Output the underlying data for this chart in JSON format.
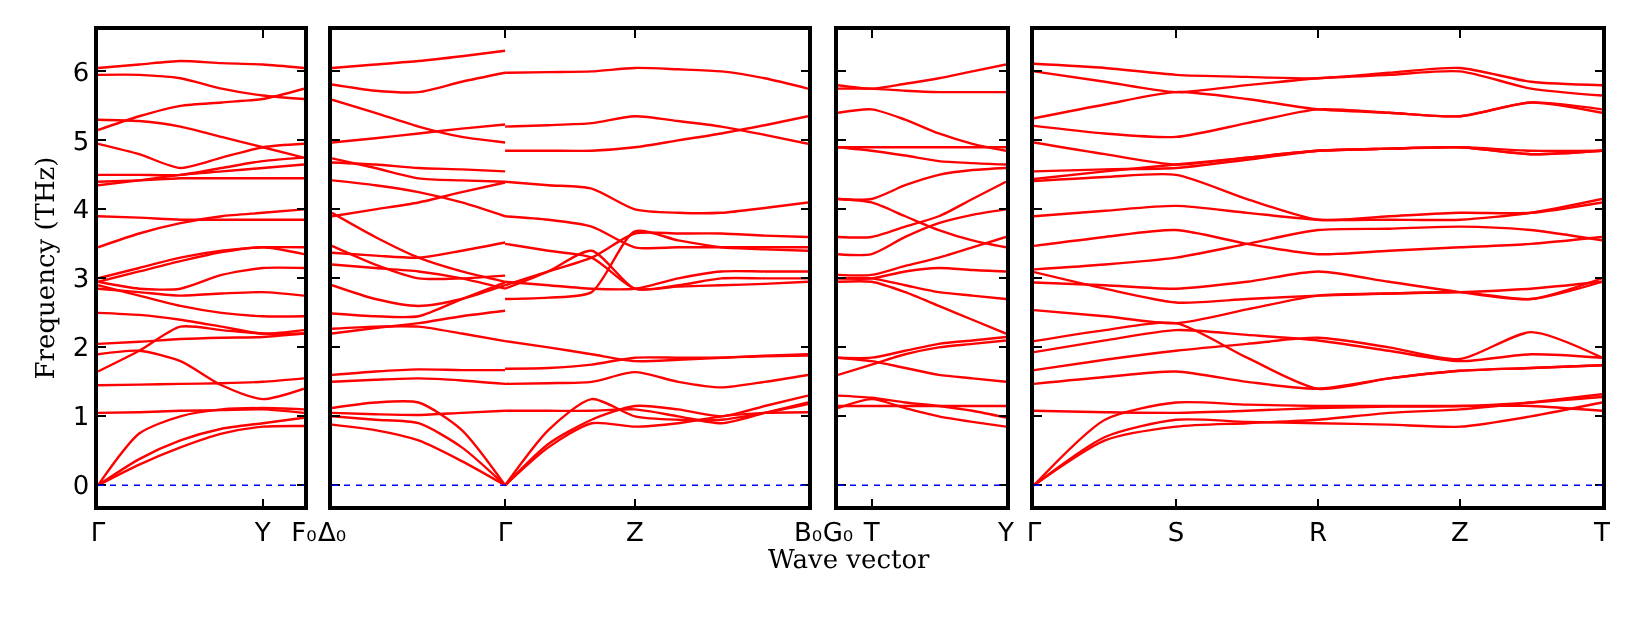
{
  "chart_data": [
    {
      "type": "line",
      "ylabel": "Frequency (THz)",
      "ylim": [
        -0.3,
        6.6
      ],
      "yticks": [
        0,
        1,
        2,
        3,
        4,
        5,
        6
      ],
      "categories": [
        "Γ",
        null,
        null,
        null,
        "Y",
        "F₀"
      ],
      "marker": "none",
      "line_style": "solid",
      "ref_lines": [
        {
          "axis": "y",
          "value": 0,
          "color": "#0000ff",
          "line_style": "dotted"
        }
      ],
      "series": [
        {
          "color": "#ff0000",
          "values": [
            0,
            0.3,
            0.55,
            0.75,
            0.85,
            0.86
          ]
        },
        {
          "color": "#ff0000",
          "values": [
            0,
            0.38,
            0.65,
            0.82,
            0.9,
            0.98
          ]
        },
        {
          "color": "#ff0000",
          "values": [
            0,
            0.75,
            1.0,
            1.1,
            1.12,
            1.1
          ]
        },
        {
          "color": "#ff0000",
          "values": [
            1.05,
            1.06,
            1.08,
            1.09,
            1.1,
            1.05
          ]
        },
        {
          "color": "#ff0000",
          "values": [
            1.45,
            1.46,
            1.47,
            1.48,
            1.5,
            1.55
          ]
        },
        {
          "color": "#ff0000",
          "values": [
            1.65,
            1.95,
            2.3,
            2.25,
            2.2,
            2.2
          ]
        },
        {
          "color": "#ff0000",
          "values": [
            1.9,
            1.95,
            1.8,
            1.45,
            1.25,
            1.4
          ]
        },
        {
          "color": "#ff0000",
          "values": [
            2.05,
            2.08,
            2.12,
            2.14,
            2.15,
            2.2
          ]
        },
        {
          "color": "#ff0000",
          "values": [
            2.5,
            2.47,
            2.4,
            2.3,
            2.2,
            2.25
          ]
        },
        {
          "color": "#ff0000",
          "values": [
            2.9,
            2.75,
            2.6,
            2.5,
            2.45,
            2.45
          ]
        },
        {
          "color": "#ff0000",
          "values": [
            2.85,
            2.8,
            2.75,
            2.78,
            2.8,
            2.75
          ]
        },
        {
          "color": "#ff0000",
          "values": [
            2.95,
            2.85,
            2.85,
            3.05,
            3.15,
            3.15
          ]
        },
        {
          "color": "#ff0000",
          "values": [
            2.95,
            3.1,
            3.25,
            3.38,
            3.45,
            3.35
          ]
        },
        {
          "color": "#ff0000",
          "values": [
            3.0,
            3.15,
            3.3,
            3.4,
            3.45,
            3.45
          ]
        },
        {
          "color": "#ff0000",
          "values": [
            3.45,
            3.65,
            3.8,
            3.9,
            3.95,
            4.0
          ]
        },
        {
          "color": "#ff0000",
          "values": [
            3.9,
            3.88,
            3.85,
            3.85,
            3.85,
            3.85
          ]
        },
        {
          "color": "#ff0000",
          "values": [
            4.35,
            4.42,
            4.5,
            4.55,
            4.6,
            4.65
          ]
        },
        {
          "color": "#ff0000",
          "values": [
            4.4,
            4.42,
            4.45,
            4.45,
            4.45,
            4.45
          ]
        },
        {
          "color": "#ff0000",
          "values": [
            4.5,
            4.5,
            4.5,
            4.6,
            4.7,
            4.75
          ]
        },
        {
          "color": "#ff0000",
          "values": [
            4.95,
            4.8,
            4.6,
            4.75,
            4.9,
            4.95
          ]
        },
        {
          "color": "#ff0000",
          "values": [
            5.15,
            5.35,
            5.5,
            5.55,
            5.6,
            5.75
          ]
        },
        {
          "color": "#ff0000",
          "values": [
            5.3,
            5.28,
            5.2,
            5.05,
            4.9,
            4.75
          ]
        },
        {
          "color": "#ff0000",
          "values": [
            5.95,
            5.95,
            5.9,
            5.75,
            5.65,
            5.6
          ]
        },
        {
          "color": "#ff0000",
          "values": [
            6.05,
            6.1,
            6.15,
            6.12,
            6.1,
            6.05
          ]
        }
      ]
    },
    {
      "type": "line",
      "ylim": [
        -0.3,
        6.6
      ],
      "yticks": [
        0,
        1,
        2,
        3,
        4,
        5,
        6
      ],
      "tick_labels": "x",
      "categories": [
        "Δ₀",
        null,
        null,
        null,
        "Γ",
        null,
        null,
        "Z",
        null,
        null,
        null,
        "B₀"
      ],
      "marker": "none",
      "line_style": "solid",
      "ref_lines": [
        {
          "axis": "y",
          "value": 0,
          "color": "#0000ff",
          "line_style": "dotted"
        }
      ],
      "series": [
        {
          "color": "#ff0000",
          "values": [
            1.12,
            1.2,
            1.2,
            0.8,
            0,
            null,
            null,
            null,
            null,
            null,
            null,
            null
          ]
        },
        {
          "color": "#ff0000",
          "values": [
            1.0,
            0.95,
            0.9,
            0.55,
            0,
            null,
            null,
            null,
            null,
            null,
            null,
            null
          ]
        },
        {
          "color": "#ff0000",
          "values": [
            0.88,
            0.8,
            0.65,
            0.35,
            0,
            null,
            null,
            null,
            null,
            null,
            null,
            null
          ]
        },
        {
          "color": "#ff0000",
          "values": [
            1.05,
            1.03,
            1.02,
            1.05,
            1.08,
            null,
            null,
            null,
            null,
            null,
            null,
            null
          ]
        },
        {
          "color": "#ff0000",
          "values": [
            1.5,
            1.53,
            1.55,
            1.52,
            1.47,
            null,
            null,
            null,
            null,
            null,
            null,
            null
          ]
        },
        {
          "color": "#ff0000",
          "values": [
            1.6,
            1.65,
            1.68,
            1.67,
            1.67,
            null,
            null,
            null,
            null,
            null,
            null,
            null
          ]
        },
        {
          "color": "#ff0000",
          "values": [
            2.27,
            2.3,
            2.3,
            2.2,
            2.09,
            null,
            null,
            null,
            null,
            null,
            null,
            null
          ]
        },
        {
          "color": "#ff0000",
          "values": [
            2.2,
            2.28,
            2.35,
            2.45,
            2.53,
            null,
            null,
            null,
            null,
            null,
            null,
            null
          ]
        },
        {
          "color": "#ff0000",
          "values": [
            2.49,
            2.45,
            2.45,
            2.7,
            2.94,
            null,
            null,
            null,
            null,
            null,
            null,
            null
          ]
        },
        {
          "color": "#ff0000",
          "values": [
            2.9,
            2.7,
            2.6,
            2.7,
            2.9,
            null,
            null,
            null,
            null,
            null,
            null,
            null
          ]
        },
        {
          "color": "#ff0000",
          "values": [
            3.2,
            3.15,
            3.1,
            3.0,
            2.85,
            null,
            null,
            null,
            null,
            null,
            null,
            null
          ]
        },
        {
          "color": "#ff0000",
          "values": [
            3.37,
            3.33,
            3.3,
            3.4,
            3.52,
            null,
            null,
            null,
            null,
            null,
            null,
            null
          ]
        },
        {
          "color": "#ff0000",
          "values": [
            3.47,
            3.2,
            3.0,
            3.0,
            3.04,
            null,
            null,
            null,
            null,
            null,
            null,
            null
          ]
        },
        {
          "color": "#ff0000",
          "values": [
            3.95,
            3.6,
            3.3,
            3.1,
            2.95,
            null,
            null,
            null,
            null,
            null,
            null,
            null
          ]
        },
        {
          "color": "#ff0000",
          "values": [
            3.9,
            4.0,
            4.1,
            4.25,
            4.39,
            null,
            null,
            null,
            null,
            null,
            null,
            null
          ]
        },
        {
          "color": "#ff0000",
          "values": [
            4.42,
            4.35,
            4.25,
            4.1,
            3.9,
            null,
            null,
            null,
            null,
            null,
            null,
            null
          ]
        },
        {
          "color": "#ff0000",
          "values": [
            4.68,
            4.65,
            4.6,
            4.58,
            4.55,
            null,
            null,
            null,
            null,
            null,
            null,
            null
          ]
        },
        {
          "color": "#ff0000",
          "values": [
            4.74,
            4.6,
            4.45,
            4.42,
            4.4,
            null,
            null,
            null,
            null,
            null,
            null,
            null
          ]
        },
        {
          "color": "#ff0000",
          "values": [
            4.97,
            5.03,
            5.1,
            5.17,
            5.23,
            null,
            null,
            null,
            null,
            null,
            null,
            null
          ]
        },
        {
          "color": "#ff0000",
          "values": [
            5.59,
            5.4,
            5.2,
            5.05,
            4.97,
            null,
            null,
            null,
            null,
            null,
            null,
            null
          ]
        },
        {
          "color": "#ff0000",
          "values": [
            5.81,
            5.72,
            5.7,
            5.85,
            5.98,
            null,
            null,
            null,
            null,
            null,
            null,
            null
          ]
        },
        {
          "color": "#ff0000",
          "values": [
            6.05,
            6.1,
            6.15,
            6.22,
            6.3,
            null,
            null,
            null,
            null,
            null,
            null,
            null
          ]
        },
        {
          "color": "#ff0000",
          "values": [
            null,
            null,
            null,
            null,
            0,
            0.55,
            0.9,
            0.85,
            0.9,
            1.0,
            1.05,
            1.06
          ]
        },
        {
          "color": "#ff0000",
          "values": [
            null,
            null,
            null,
            null,
            0,
            0.8,
            1.25,
            1.0,
            0.95,
            0.95,
            1.05,
            1.18
          ]
        },
        {
          "color": "#ff0000",
          "values": [
            null,
            null,
            null,
            null,
            0,
            0.6,
            0.95,
            1.15,
            1.1,
            1.0,
            1.15,
            1.3
          ]
        },
        {
          "color": "#ff0000",
          "values": [
            null,
            null,
            null,
            null,
            1.08,
            1.08,
            1.08,
            1.1,
            1.0,
            0.9,
            1.05,
            1.2
          ]
        },
        {
          "color": "#ff0000",
          "values": [
            null,
            null,
            null,
            null,
            1.47,
            1.48,
            1.5,
            1.64,
            1.5,
            1.42,
            1.5,
            1.6
          ]
        },
        {
          "color": "#ff0000",
          "values": [
            null,
            null,
            null,
            null,
            1.69,
            1.7,
            1.75,
            1.85,
            1.85,
            1.85,
            1.87,
            1.88
          ]
        },
        {
          "color": "#ff0000",
          "values": [
            null,
            null,
            null,
            null,
            2.09,
            2.0,
            1.9,
            1.8,
            1.82,
            1.85,
            1.88,
            1.9
          ]
        },
        {
          "color": "#ff0000",
          "values": [
            null,
            null,
            null,
            null,
            2.7,
            2.72,
            2.8,
            3.68,
            3.55,
            3.45,
            3.42,
            3.4
          ]
        },
        {
          "color": "#ff0000",
          "values": [
            null,
            null,
            null,
            null,
            2.9,
            3.1,
            3.3,
            3.65,
            3.65,
            3.65,
            3.62,
            3.6
          ]
        },
        {
          "color": "#ff0000",
          "values": [
            null,
            null,
            null,
            null,
            2.95,
            2.9,
            2.85,
            2.85,
            3.0,
            3.1,
            3.1,
            3.1
          ]
        },
        {
          "color": "#ff0000",
          "values": [
            null,
            null,
            null,
            null,
            2.85,
            3.1,
            3.4,
            2.85,
            2.9,
            3.0,
            3.0,
            3.0
          ]
        },
        {
          "color": "#ff0000",
          "values": [
            null,
            null,
            null,
            null,
            3.5,
            3.4,
            3.3,
            2.85,
            2.88,
            2.9,
            2.92,
            2.95
          ]
        },
        {
          "color": "#ff0000",
          "values": [
            null,
            null,
            null,
            null,
            3.9,
            3.85,
            3.75,
            3.45,
            3.45,
            3.45,
            3.45,
            3.45
          ]
        },
        {
          "color": "#ff0000",
          "values": [
            null,
            null,
            null,
            null,
            4.4,
            4.35,
            4.3,
            4.0,
            3.95,
            3.95,
            4.02,
            4.1
          ]
        },
        {
          "color": "#ff0000",
          "values": [
            null,
            null,
            null,
            null,
            4.85,
            4.85,
            4.85,
            4.9,
            5.0,
            5.1,
            5.22,
            5.35
          ]
        },
        {
          "color": "#ff0000",
          "values": [
            null,
            null,
            null,
            null,
            5.2,
            5.22,
            5.25,
            5.35,
            5.28,
            5.2,
            5.08,
            4.95
          ]
        },
        {
          "color": "#ff0000",
          "values": [
            null,
            null,
            null,
            null,
            5.98,
            5.99,
            6.0,
            6.05,
            6.03,
            6.0,
            5.9,
            5.75
          ]
        }
      ]
    },
    {
      "type": "line",
      "xlabel": "Wave vector",
      "ylim": [
        -0.3,
        6.6
      ],
      "yticks": [
        0,
        1,
        2,
        3,
        4,
        5,
        6
      ],
      "tick_labels": "x",
      "categories": [
        "G₀",
        "T",
        null,
        null,
        null,
        "Y"
      ],
      "marker": "none",
      "line_style": "solid",
      "ref_lines": [
        {
          "axis": "y",
          "value": 0,
          "color": "#0000ff",
          "line_style": "dotted"
        }
      ],
      "series": [
        {
          "color": "#ff0000",
          "values": [
            5.8,
            5.75,
            5.82,
            5.9,
            6.0,
            6.1
          ]
        },
        {
          "color": "#ff0000",
          "values": [
            5.75,
            5.75,
            5.72,
            5.7,
            5.7,
            5.7
          ]
        },
        {
          "color": "#ff0000",
          "values": [
            5.4,
            5.45,
            5.3,
            5.1,
            4.95,
            4.85
          ]
        },
        {
          "color": "#ff0000",
          "values": [
            4.9,
            4.9,
            4.9,
            4.9,
            4.9,
            4.9
          ]
        },
        {
          "color": "#ff0000",
          "values": [
            4.9,
            4.85,
            4.78,
            4.7,
            4.67,
            4.65
          ]
        },
        {
          "color": "#ff0000",
          "values": [
            4.15,
            4.15,
            4.35,
            4.5,
            4.57,
            4.6
          ]
        },
        {
          "color": "#ff0000",
          "values": [
            4.15,
            4.1,
            3.9,
            3.7,
            3.55,
            3.45
          ]
        },
        {
          "color": "#ff0000",
          "values": [
            3.6,
            3.6,
            3.75,
            3.9,
            4.15,
            4.4
          ]
        },
        {
          "color": "#ff0000",
          "values": [
            3.35,
            3.35,
            3.6,
            3.8,
            3.92,
            4.0
          ]
        },
        {
          "color": "#ff0000",
          "values": [
            3.05,
            3.05,
            3.18,
            3.3,
            3.45,
            3.6
          ]
        },
        {
          "color": "#ff0000",
          "values": [
            3.0,
            3.0,
            3.1,
            3.15,
            3.12,
            3.1
          ]
        },
        {
          "color": "#ff0000",
          "values": [
            2.95,
            2.95,
            2.8,
            2.6,
            2.4,
            2.2
          ]
        },
        {
          "color": "#ff0000",
          "values": [
            3.0,
            3.0,
            2.9,
            2.8,
            2.75,
            2.7
          ]
        },
        {
          "color": "#ff0000",
          "values": [
            1.85,
            1.85,
            1.95,
            2.05,
            2.1,
            2.15
          ]
        },
        {
          "color": "#ff0000",
          "values": [
            1.6,
            1.75,
            1.9,
            2.0,
            2.05,
            2.1
          ]
        },
        {
          "color": "#ff0000",
          "values": [
            1.85,
            1.8,
            1.7,
            1.6,
            1.55,
            1.5
          ]
        },
        {
          "color": "#ff0000",
          "values": [
            1.3,
            1.27,
            1.2,
            1.15,
            1.08,
            0.98
          ]
        },
        {
          "color": "#ff0000",
          "values": [
            1.12,
            1.25,
            1.12,
            1.0,
            0.92,
            0.85
          ]
        },
        {
          "color": "#ff0000",
          "values": [
            1.15,
            1.15,
            1.15,
            1.15,
            1.15,
            1.15
          ]
        }
      ]
    },
    {
      "type": "line",
      "ylim": [
        -0.3,
        6.6
      ],
      "yticks": [
        0,
        1,
        2,
        3,
        4,
        5,
        6
      ],
      "tick_labels": "x",
      "categories": [
        "Γ",
        null,
        "S",
        null,
        "R",
        null,
        "Z",
        null,
        "T"
      ],
      "marker": "none",
      "line_style": "solid",
      "ref_lines": [
        {
          "axis": "y",
          "value": 0,
          "color": "#0000ff",
          "line_style": "dotted"
        }
      ],
      "series": [
        {
          "color": "#ff0000",
          "values": [
            0,
            0.95,
            1.2,
            1.17,
            1.15,
            1.15,
            1.15,
            1.15,
            1.08
          ]
        },
        {
          "color": "#ff0000",
          "values": [
            0,
            0.7,
            0.95,
            0.92,
            0.9,
            0.88,
            0.85,
            1.0,
            1.2
          ]
        },
        {
          "color": "#ff0000",
          "values": [
            0,
            0.65,
            0.85,
            0.9,
            0.95,
            1.05,
            1.1,
            1.2,
            1.32
          ]
        },
        {
          "color": "#ff0000",
          "values": [
            1.08,
            1.06,
            1.05,
            1.08,
            1.12,
            1.14,
            1.15,
            1.2,
            1.28
          ]
        },
        {
          "color": "#ff0000",
          "values": [
            1.47,
            1.57,
            1.65,
            1.5,
            1.4,
            1.55,
            1.66,
            1.7,
            1.74
          ]
        },
        {
          "color": "#ff0000",
          "values": [
            1.67,
            1.82,
            1.95,
            2.05,
            2.14,
            2.0,
            1.83,
            2.22,
            1.85
          ]
        },
        {
          "color": "#ff0000",
          "values": [
            1.93,
            2.1,
            2.25,
            2.18,
            2.1,
            1.95,
            1.8,
            1.9,
            1.85
          ]
        },
        {
          "color": "#ff0000",
          "values": [
            2.09,
            2.25,
            2.35,
            1.85,
            1.4,
            1.55,
            1.66,
            1.7,
            1.74
          ]
        },
        {
          "color": "#ff0000",
          "values": [
            2.54,
            2.45,
            2.35,
            2.55,
            2.75,
            2.78,
            2.8,
            2.7,
            2.95
          ]
        },
        {
          "color": "#ff0000",
          "values": [
            2.94,
            2.9,
            2.85,
            2.95,
            3.1,
            2.95,
            2.8,
            2.7,
            3.0
          ]
        },
        {
          "color": "#ff0000",
          "values": [
            3.09,
            2.85,
            2.65,
            2.7,
            2.75,
            2.78,
            2.8,
            2.85,
            2.95
          ]
        },
        {
          "color": "#ff0000",
          "values": [
            3.13,
            3.2,
            3.3,
            3.5,
            3.7,
            3.72,
            3.75,
            3.7,
            3.55
          ]
        },
        {
          "color": "#ff0000",
          "values": [
            3.47,
            3.6,
            3.7,
            3.5,
            3.35,
            3.4,
            3.45,
            3.5,
            3.6
          ]
        },
        {
          "color": "#ff0000",
          "values": [
            3.9,
            3.98,
            4.05,
            3.95,
            3.85,
            3.85,
            3.85,
            3.95,
            4.15
          ]
        },
        {
          "color": "#ff0000",
          "values": [
            4.41,
            4.47,
            4.5,
            4.15,
            3.85,
            3.9,
            3.95,
            3.95,
            4.1
          ]
        },
        {
          "color": "#ff0000",
          "values": [
            4.44,
            4.55,
            4.65,
            4.75,
            4.85,
            4.88,
            4.9,
            4.8,
            4.85
          ]
        },
        {
          "color": "#ff0000",
          "values": [
            4.55,
            4.58,
            4.6,
            4.72,
            4.85,
            4.88,
            4.9,
            4.85,
            4.85
          ]
        },
        {
          "color": "#ff0000",
          "values": [
            4.97,
            4.8,
            4.65,
            4.75,
            4.85,
            4.88,
            4.9,
            4.8,
            4.85
          ]
        },
        {
          "color": "#ff0000",
          "values": [
            5.21,
            5.1,
            5.05,
            5.25,
            5.45,
            5.4,
            5.35,
            5.55,
            5.4
          ]
        },
        {
          "color": "#ff0000",
          "values": [
            5.32,
            5.52,
            5.7,
            5.6,
            5.45,
            5.4,
            5.35,
            5.55,
            5.45
          ]
        },
        {
          "color": "#ff0000",
          "values": [
            6.0,
            5.85,
            5.7,
            5.8,
            5.9,
            5.95,
            6.0,
            5.75,
            5.65
          ]
        },
        {
          "color": "#ff0000",
          "values": [
            6.11,
            6.05,
            5.95,
            5.92,
            5.9,
            5.98,
            6.05,
            5.85,
            5.8
          ]
        }
      ]
    }
  ]
}
